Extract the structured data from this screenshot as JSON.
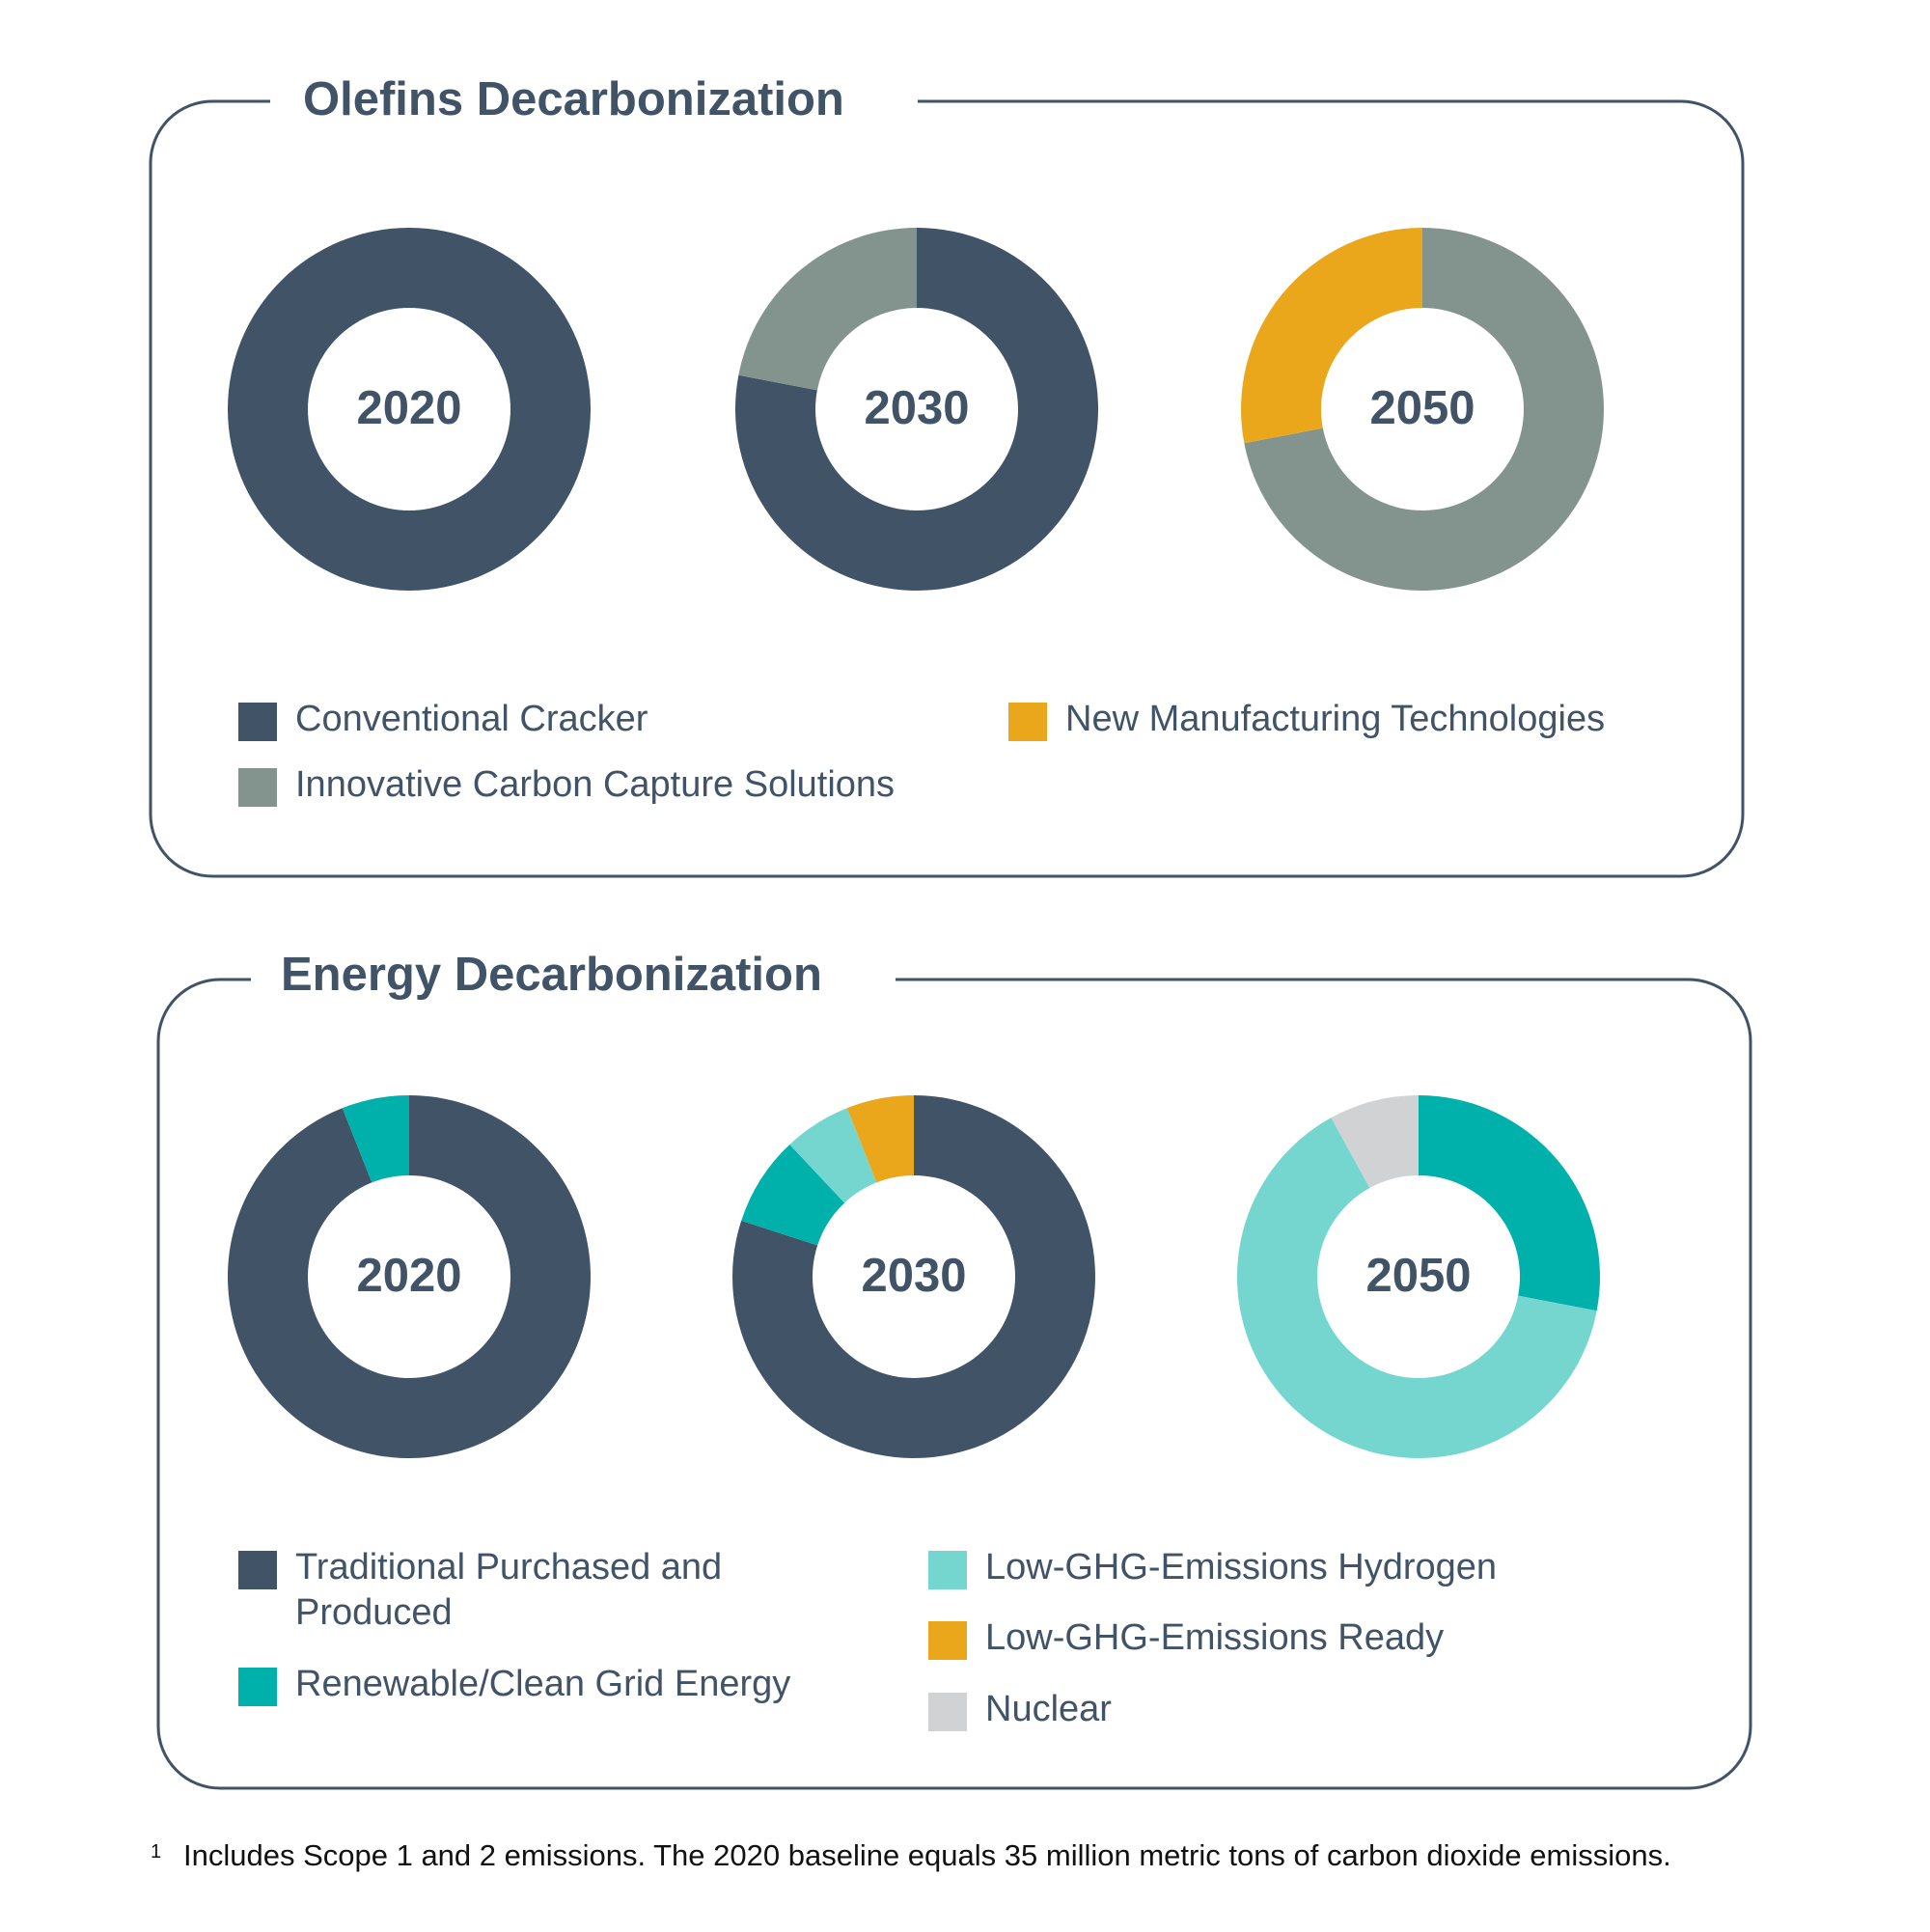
{
  "chart_data": [
    {
      "type": "donut",
      "title": "Olefins Decarbonization",
      "categories": [
        "2020",
        "2030",
        "2050"
      ],
      "series": [
        {
          "name": "Conventional Cracker",
          "color": "#415366",
          "values": [
            100,
            78,
            0
          ]
        },
        {
          "name": "Innovative Carbon Capture Solutions",
          "color": "#83948f",
          "values": [
            0,
            22,
            72
          ]
        },
        {
          "name": "New Manufacturing Technologies",
          "color": "#eba71b",
          "values": [
            0,
            0,
            28
          ]
        }
      ]
    },
    {
      "type": "donut",
      "title": "Energy Decarbonization",
      "categories": [
        "2020",
        "2030",
        "2050"
      ],
      "series": [
        {
          "name": "Traditional Purchased and Produced",
          "color": "#415366",
          "values": [
            94,
            80,
            0
          ]
        },
        {
          "name": "Renewable/Clean Grid Energy",
          "color": "#00b0aa",
          "values": [
            6,
            8,
            28
          ]
        },
        {
          "name": "Low-GHG-Emissions Hydrogen",
          "color": "#75d6d0",
          "values": [
            0,
            6,
            64
          ]
        },
        {
          "name": "Low-GHG-Emissions Ready",
          "color": "#eba71b",
          "values": [
            0,
            6,
            0
          ]
        },
        {
          "name": "Nuclear",
          "color": "#d1d2d4",
          "values": [
            0,
            0,
            8
          ]
        }
      ]
    }
  ],
  "footnote": {
    "marker": "1",
    "text": "Includes Scope 1 and 2 emissions. The 2020 baseline equals 35 million metric tons of carbon dioxide emissions."
  }
}
